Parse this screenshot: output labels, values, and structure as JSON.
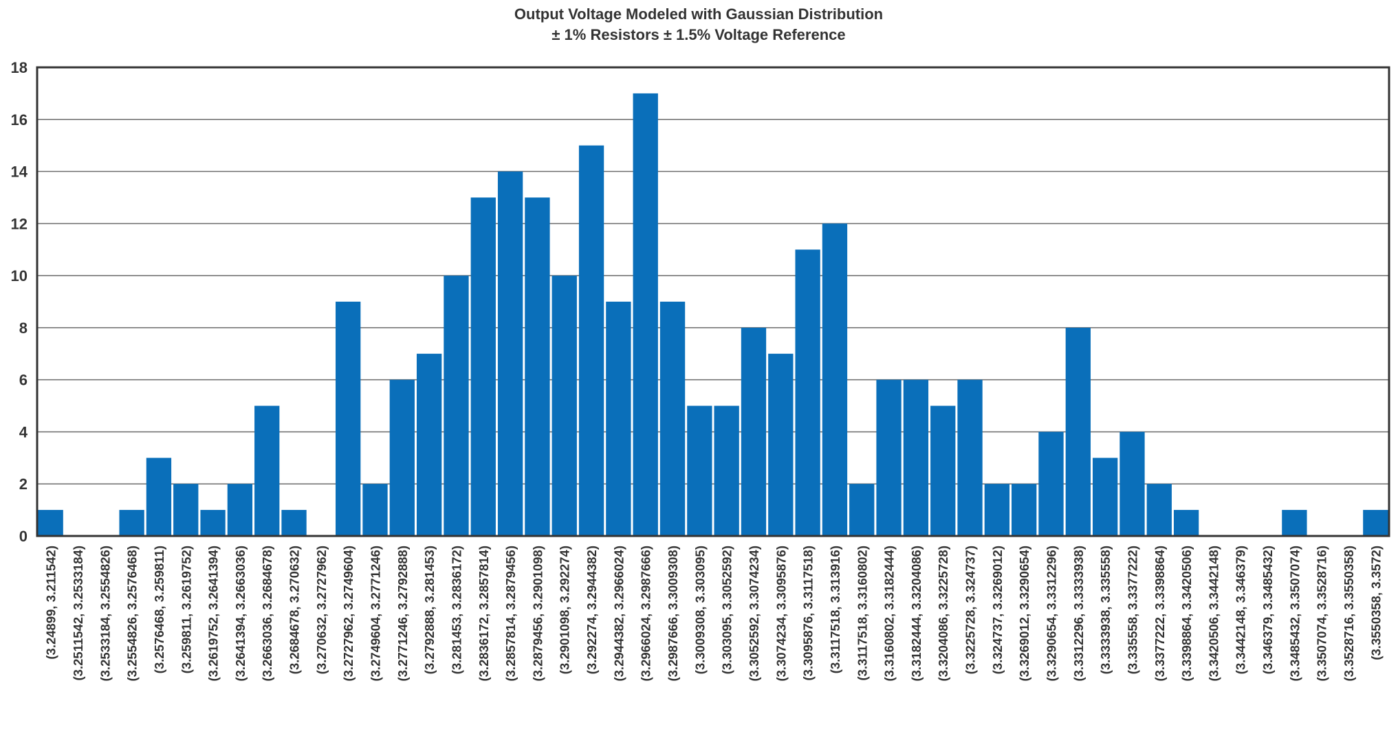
{
  "chart_data": {
    "type": "bar",
    "title": "Output Voltage Modeled with Gaussian Distribution",
    "subtitle": "± 1% Resistors ± 1.5% Voltage Reference",
    "xlabel": "",
    "ylabel": "",
    "ylim": [
      0,
      18
    ],
    "yticks": [
      "0",
      "2",
      "4",
      "6",
      "8",
      "10",
      "12",
      "14",
      "16",
      "18"
    ],
    "grid": true,
    "bar_color": "#0a6fba",
    "categories": [
      "(3.24899, 3.211542)",
      "(3.2511542, 3.2533184)",
      "(3.2533184, 3.2554826)",
      "(3.2554826, 3.2576468)",
      "(3.2576468, 3.259811)",
      "(3.259811, 3.2619752)",
      "(3.2619752, 3.2641394)",
      "(3.2641394, 3.2663036)",
      "(3.2663036, 3.2684678)",
      "(3.2684678, 3.270632)",
      "(3.270632, 3.2727962)",
      "(3.2727962, 3.2749604)",
      "(3.2749604, 3.2771246)",
      "(3.2771246, 3.2792888)",
      "(3.2792888, 3.281453)",
      "(3.281453, 3.2836172)",
      "(3.2836172, 3.2857814)",
      "(3.2857814, 3.2879456)",
      "(3.2879456, 3.2901098)",
      "(3.2901098, 3.292274)",
      "(3.292274, 3.2944382)",
      "(3.2944382, 3.2966024)",
      "(3.2966024, 3.2987666)",
      "(3.2987666, 3.3009308)",
      "(3.3009308, 3.303095)",
      "(3.303095, 3.3052592)",
      "(3.3052592, 3.3074234)",
      "(3.3074234, 3.3095876)",
      "(3.3095876, 3.3117518)",
      "(3.3117518, 3.313916)",
      "(3.3117518, 3.3160802)",
      "(3.3160802, 3.3182444)",
      "(3.3182444, 3.3204086)",
      "(3.3204086, 3.3225728)",
      "(3.3225728, 3.324737)",
      "(3.324737, 3.3269012)",
      "(3.3269012, 3.3290654)",
      "(3.3290654, 3.3312296)",
      "(3.3312296, 3.3333938)",
      "(3.3333938, 3.335558)",
      "(3.335558, 3.3377222)",
      "(3.3377222, 3.3398864)",
      "(3.3398864, 3.3420506)",
      "(3.3420506, 3.3442148)",
      "(3.3442148, 3.346379)",
      "(3.346379, 3.3485432)",
      "(3.3485432, 3.3507074)",
      "(3.3507074, 3.3528716)",
      "(3.3528716, 3.3550358)",
      "(3.3550358, 3.3572)"
    ],
    "values": [
      1,
      0,
      0,
      1,
      3,
      2,
      1,
      2,
      5,
      1,
      0,
      9,
      2,
      6,
      7,
      10,
      13,
      14,
      13,
      10,
      15,
      9,
      17,
      9,
      5,
      5,
      8,
      7,
      11,
      12,
      2,
      6,
      6,
      5,
      6,
      2,
      2,
      4,
      8,
      3,
      4,
      2,
      1,
      0,
      0,
      0,
      1,
      0,
      0,
      1
    ]
  }
}
